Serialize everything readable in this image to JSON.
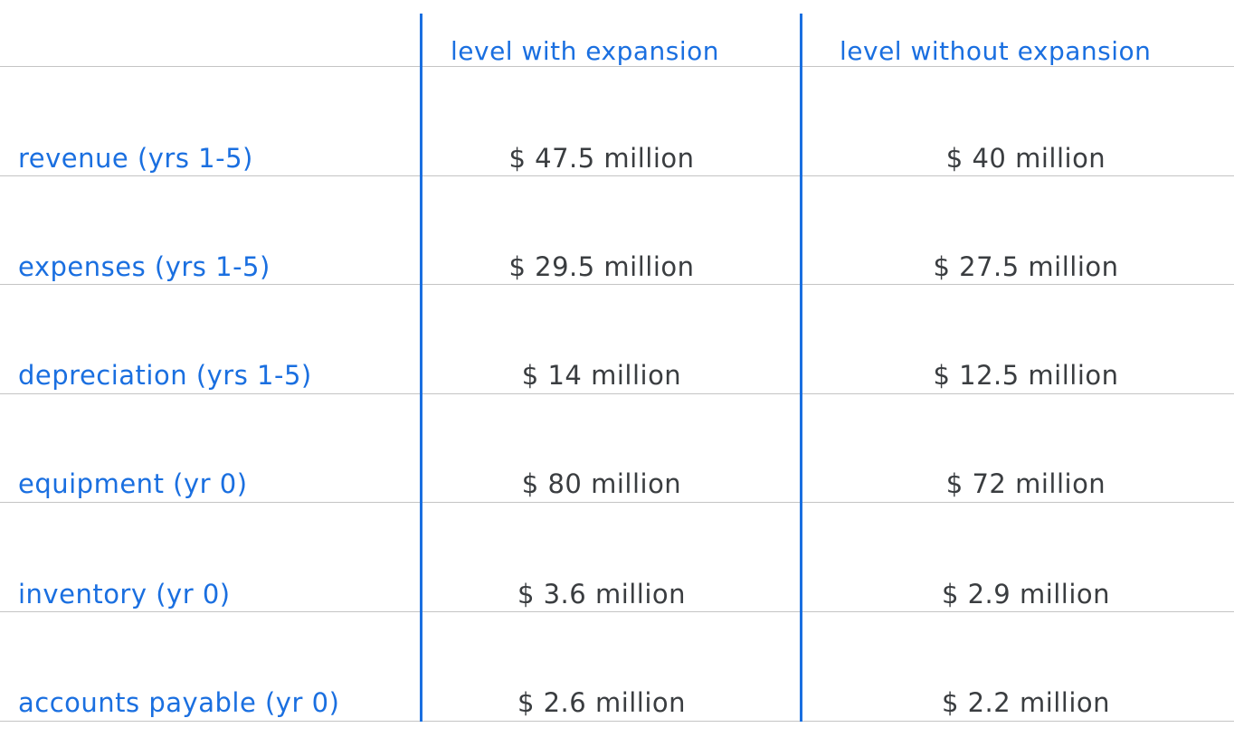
{
  "table": {
    "headers": {
      "label_col": "",
      "with_expansion": "level with expansion",
      "without_expansion": "level without expansion"
    },
    "rows": [
      {
        "label": "revenue (yrs 1-5)",
        "with_expansion": "$ 47.5 million",
        "without_expansion": "$ 40 million"
      },
      {
        "label": "expenses (yrs 1-5)",
        "with_expansion": "$ 29.5 million",
        "without_expansion": "$ 27.5 million"
      },
      {
        "label": "depreciation (yrs 1-5)",
        "with_expansion": "$ 14 million",
        "without_expansion": "$ 12.5 million"
      },
      {
        "label": "equipment (yr 0)",
        "with_expansion": "$ 80 million",
        "without_expansion": "$ 72 million"
      },
      {
        "label": "inventory (yr 0)",
        "with_expansion": "$ 3.6 million",
        "without_expansion": "$ 2.9 million"
      },
      {
        "label": "accounts payable (yr 0)",
        "with_expansion": "$ 2.6 million",
        "without_expansion": "$ 2.2 million"
      }
    ],
    "colors": {
      "accent": "#1a6fe0",
      "value_text": "#3a3d40",
      "rule": "#c4c4c4"
    }
  }
}
